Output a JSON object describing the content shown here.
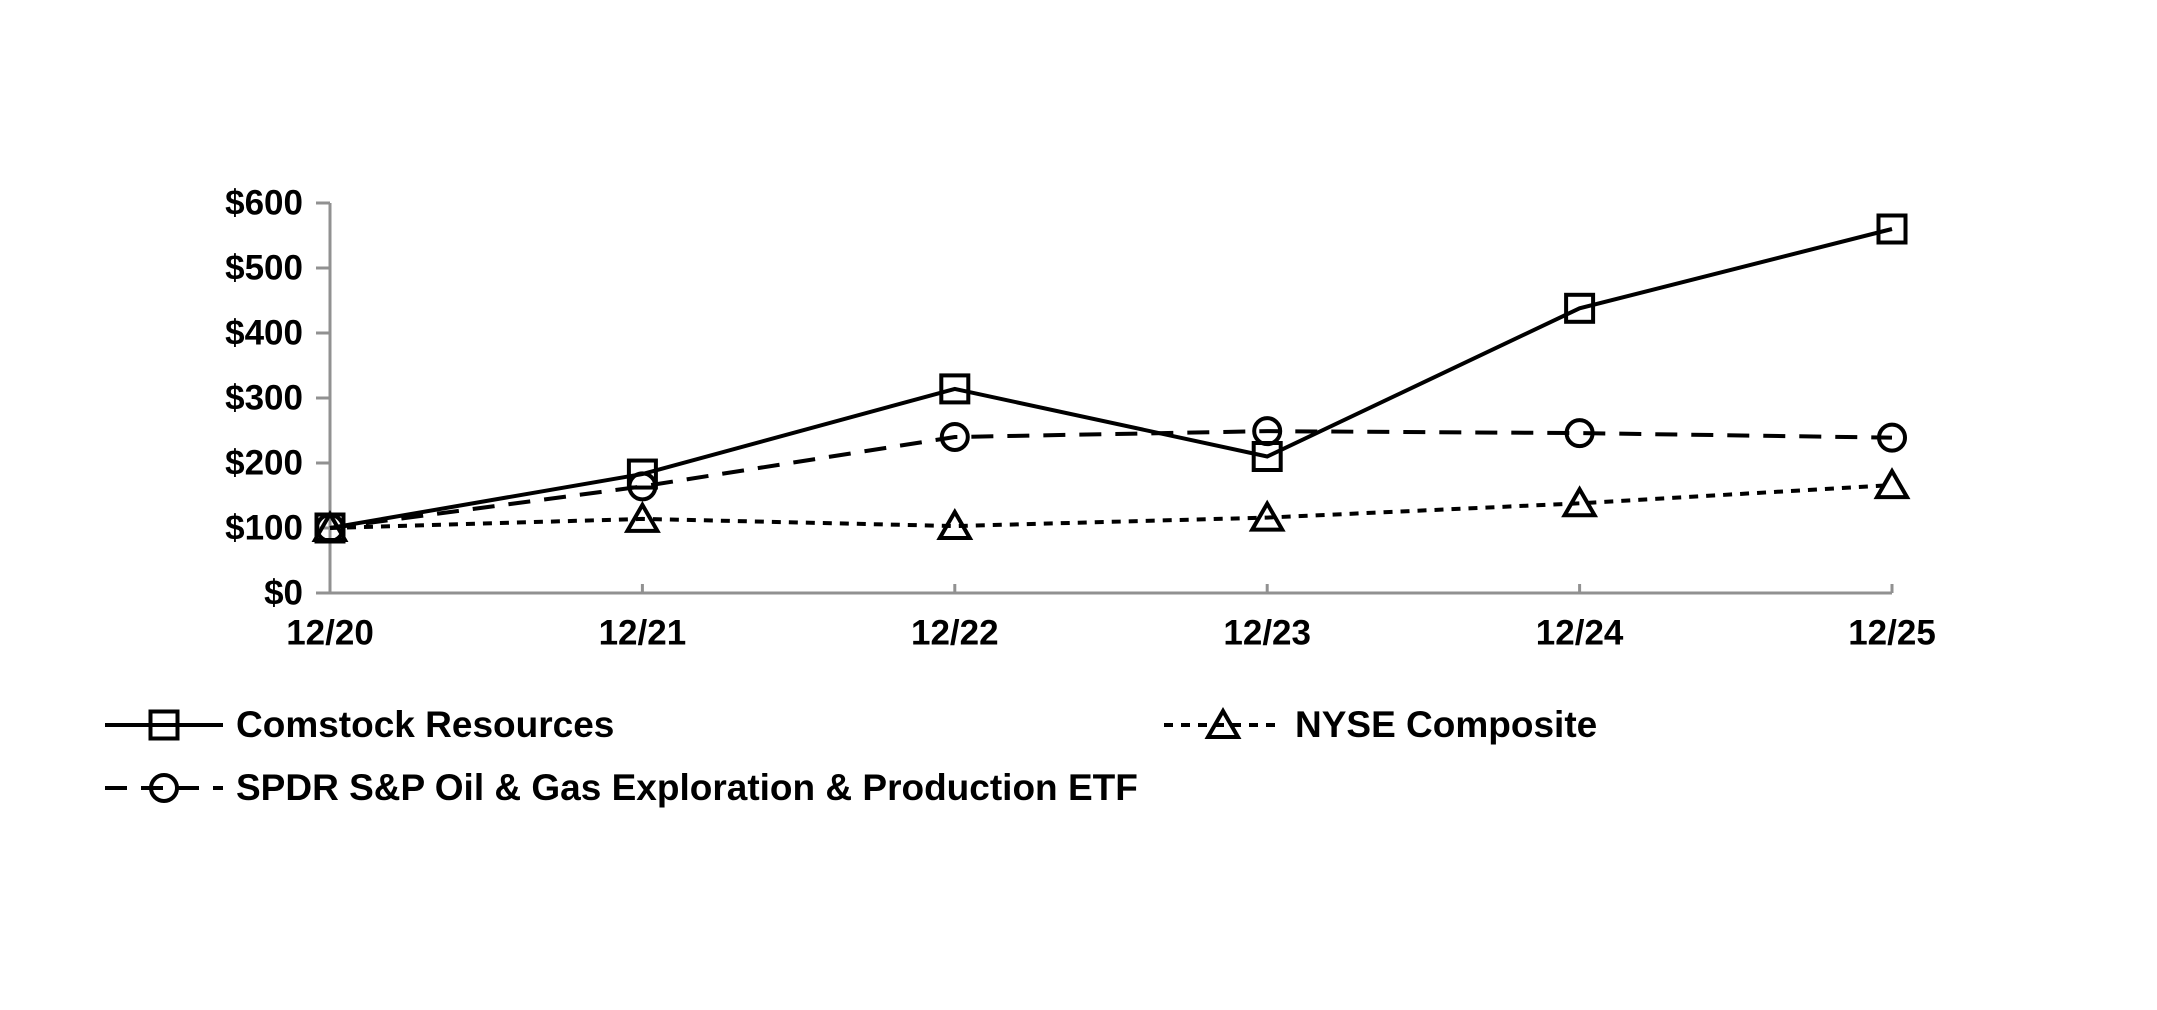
{
  "chart_data": {
    "type": "line",
    "title": "",
    "x_categories": [
      "12/20",
      "12/21",
      "12/22",
      "12/23",
      "12/24",
      "12/25"
    ],
    "y_axis": {
      "min": 0,
      "max": 600,
      "step": 100,
      "tick_labels": [
        "$0",
        "$100",
        "$200",
        "$300",
        "$400",
        "$500",
        "$600"
      ]
    },
    "grid": false,
    "legend_position": "below-chart-two-rows",
    "series": [
      {
        "id": "comstock",
        "name": "Comstock Resources",
        "marker": "square",
        "line_style": "solid",
        "values": [
          100,
          183,
          314,
          210,
          438,
          560
        ]
      },
      {
        "id": "spdr",
        "name": "SPDR S&P Oil & Gas Exploration & Production ETF",
        "marker": "circle",
        "line_style": "long-dash",
        "values": [
          100,
          164,
          240,
          249,
          246,
          239
        ]
      },
      {
        "id": "nyse",
        "name": "NYSE Composite",
        "marker": "triangle",
        "line_style": "short-dash",
        "values": [
          100,
          114,
          103,
          116,
          138,
          166
        ]
      }
    ],
    "colors": {
      "series_line": "#000000",
      "axis": "#919191",
      "text": "#000000",
      "background": "#ffffff"
    }
  }
}
